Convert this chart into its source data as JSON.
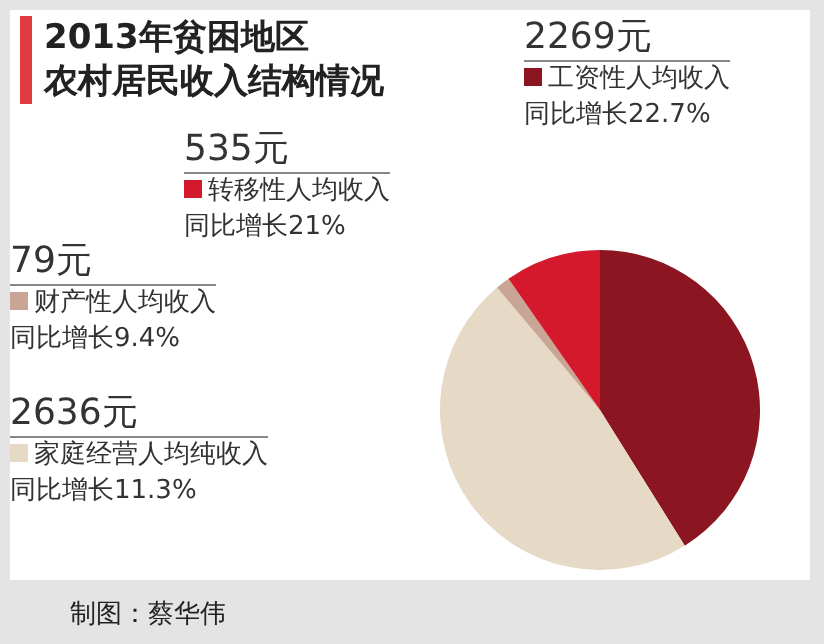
{
  "chart_data": {
    "type": "pie",
    "title": "2013年贫困地区",
    "subtitle": "农村居民收入结构情况",
    "categories": [
      "工资性人均收入",
      "家庭经营人均纯收入",
      "财产性人均收入",
      "转移性人均收入"
    ],
    "values": [
      2269,
      2636,
      79,
      535
    ],
    "value_labels": [
      "2269元",
      "2636元",
      "79元",
      "535元"
    ],
    "legend": "left",
    "colors": [
      "#8b1520",
      "#e6d9c6",
      "#c9a596",
      "#d3192b"
    ],
    "annotations": [
      "同比增长22.7%",
      "同比增长11.3%",
      "同比增长9.4%",
      "同比增长21%",
      "制图：蔡华伟"
    ]
  }
}
